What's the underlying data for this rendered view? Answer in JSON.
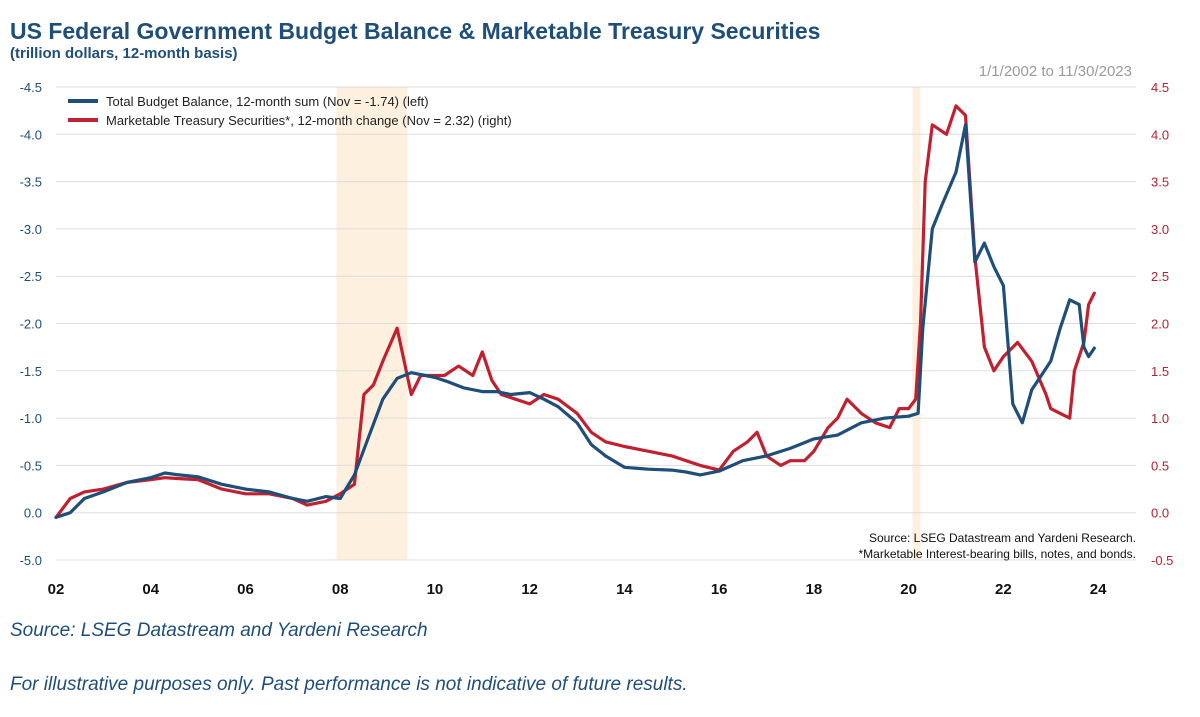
{
  "header": {
    "title": "US Federal Government Budget Balance & Marketable Treasury Securities",
    "subtitle": "(trillion dollars, 12-month basis)",
    "date_range": "1/1/2002 to 11/30/2023"
  },
  "footer": {
    "source": "Source: LSEG Datastream and Yardeni Research",
    "disclaimer": "For illustrative purposes only. Past performance is not indicative of future results."
  },
  "chart_data": {
    "type": "line",
    "title": "US Federal Government Budget Balance & Marketable Treasury Securities",
    "subtitle": "(trillion dollars, 12-month basis)",
    "x_ticks": [
      "02",
      "04",
      "06",
      "08",
      "10",
      "12",
      "14",
      "16",
      "18",
      "20",
      "22",
      "24"
    ],
    "x_tick_years": [
      2002,
      2004,
      2006,
      2008,
      2010,
      2012,
      2014,
      2016,
      2018,
      2020,
      2022,
      2024
    ],
    "xlim": [
      2002,
      2024.8
    ],
    "left_axis": {
      "ticks": [
        "-4.5",
        "-4.0",
        "-3.5",
        "-3.0",
        "-2.5",
        "-2.0",
        "-1.5",
        "-1.0",
        "-0.5",
        "0.0",
        "-5.0"
      ],
      "range_top": -4.5,
      "range_bottom": 0.5,
      "reversed": true
    },
    "right_axis": {
      "ticks": [
        "4.5",
        "4.0",
        "3.5",
        "3.0",
        "2.5",
        "2.0",
        "1.5",
        "1.0",
        "0.5",
        "0.0",
        "-0.5"
      ],
      "range": [
        -0.5,
        4.5
      ]
    },
    "grid": true,
    "legend_placement": "top-left",
    "recessions": [
      [
        2007.92,
        2009.42
      ],
      [
        2020.08,
        2020.25
      ]
    ],
    "annotations": [
      "Source: LSEG Datastream and Yardeni Research.",
      "*Marketable Interest-bearing bills, notes, and bonds."
    ],
    "colors": {
      "budget": "#1f4e79",
      "treasury": "#c0202f",
      "recession": "#fdf0de",
      "grid": "#dddddd"
    },
    "series": [
      {
        "name": "Total Budget Balance, 12-month sum (Nov = -1.74) (left)",
        "axis": "left",
        "x": [
          2002.0,
          2002.3,
          2002.6,
          2003.0,
          2003.5,
          2004.0,
          2004.3,
          2004.6,
          2005.0,
          2005.5,
          2006.0,
          2006.5,
          2007.0,
          2007.3,
          2007.7,
          2008.0,
          2008.3,
          2008.6,
          2008.9,
          2009.2,
          2009.5,
          2009.8,
          2010.0,
          2010.3,
          2010.6,
          2011.0,
          2011.3,
          2011.6,
          2012.0,
          2012.3,
          2012.6,
          2013.0,
          2013.3,
          2013.6,
          2014.0,
          2014.5,
          2015.0,
          2015.3,
          2015.6,
          2016.0,
          2016.5,
          2017.0,
          2017.5,
          2018.0,
          2018.5,
          2019.0,
          2019.5,
          2020.0,
          2020.2,
          2020.3,
          2020.5,
          2020.7,
          2021.0,
          2021.2,
          2021.4,
          2021.6,
          2021.8,
          2022.0,
          2022.2,
          2022.4,
          2022.6,
          2022.8,
          2023.0,
          2023.2,
          2023.4,
          2023.6,
          2023.7,
          2023.8,
          2023.92
        ],
        "values": [
          0.05,
          0.0,
          -0.15,
          -0.22,
          -0.32,
          -0.37,
          -0.42,
          -0.4,
          -0.38,
          -0.3,
          -0.25,
          -0.22,
          -0.15,
          -0.12,
          -0.17,
          -0.15,
          -0.4,
          -0.8,
          -1.2,
          -1.42,
          -1.48,
          -1.45,
          -1.43,
          -1.38,
          -1.32,
          -1.28,
          -1.28,
          -1.25,
          -1.27,
          -1.2,
          -1.12,
          -0.95,
          -0.72,
          -0.6,
          -0.48,
          -0.46,
          -0.45,
          -0.43,
          -0.4,
          -0.44,
          -0.55,
          -0.6,
          -0.68,
          -0.78,
          -0.82,
          -0.95,
          -1.0,
          -1.02,
          -1.05,
          -1.95,
          -3.0,
          -3.25,
          -3.6,
          -4.1,
          -2.65,
          -2.85,
          -2.6,
          -2.4,
          -1.15,
          -0.95,
          -1.3,
          -1.45,
          -1.6,
          -1.95,
          -2.25,
          -2.2,
          -1.75,
          -1.65,
          -1.74
        ]
      },
      {
        "name": "Marketable Treasury Securities*, 12-month change (Nov = 2.32) (right)",
        "axis": "right",
        "x": [
          2002.0,
          2002.3,
          2002.6,
          2003.0,
          2003.5,
          2004.0,
          2004.3,
          2004.6,
          2005.0,
          2005.5,
          2006.0,
          2006.5,
          2007.0,
          2007.3,
          2007.7,
          2008.0,
          2008.3,
          2008.5,
          2008.7,
          2008.9,
          2009.2,
          2009.5,
          2009.7,
          2009.9,
          2010.2,
          2010.5,
          2010.8,
          2011.0,
          2011.2,
          2011.4,
          2011.7,
          2012.0,
          2012.3,
          2012.6,
          2013.0,
          2013.3,
          2013.6,
          2014.0,
          2014.5,
          2015.0,
          2015.3,
          2015.6,
          2016.0,
          2016.3,
          2016.6,
          2016.8,
          2017.0,
          2017.3,
          2017.5,
          2017.8,
          2018.0,
          2018.3,
          2018.5,
          2018.7,
          2019.0,
          2019.3,
          2019.6,
          2019.8,
          2020.0,
          2020.15,
          2020.25,
          2020.35,
          2020.5,
          2020.8,
          2021.0,
          2021.2,
          2021.4,
          2021.6,
          2021.8,
          2022.0,
          2022.3,
          2022.6,
          2022.9,
          2023.0,
          2023.2,
          2023.4,
          2023.5,
          2023.7,
          2023.8,
          2023.92
        ],
        "values": [
          -0.05,
          0.15,
          0.22,
          0.25,
          0.32,
          0.35,
          0.37,
          0.36,
          0.35,
          0.25,
          0.2,
          0.2,
          0.15,
          0.08,
          0.12,
          0.2,
          0.3,
          1.25,
          1.35,
          1.6,
          1.95,
          1.25,
          1.45,
          1.45,
          1.45,
          1.55,
          1.45,
          1.7,
          1.4,
          1.25,
          1.2,
          1.15,
          1.25,
          1.2,
          1.05,
          0.85,
          0.75,
          0.7,
          0.65,
          0.6,
          0.55,
          0.5,
          0.45,
          0.65,
          0.75,
          0.85,
          0.6,
          0.5,
          0.55,
          0.55,
          0.65,
          0.9,
          1.0,
          1.2,
          1.05,
          0.95,
          0.9,
          1.1,
          1.1,
          1.2,
          2.0,
          3.5,
          4.1,
          4.0,
          4.3,
          4.2,
          2.7,
          1.75,
          1.5,
          1.65,
          1.8,
          1.6,
          1.25,
          1.1,
          1.05,
          1.0,
          1.5,
          1.8,
          2.2,
          2.32
        ]
      }
    ]
  }
}
